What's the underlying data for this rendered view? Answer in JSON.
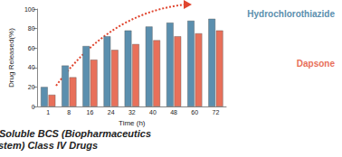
{
  "chart_data": {
    "type": "bar",
    "title": "Sustained Release of Poorly Soluble BCS (Biopharmaceutics Classification System) Class IV Drugs",
    "x_label": "Time (h)",
    "y_label": "Drug Released(%)",
    "categories": [
      "1",
      "8",
      "16",
      "24",
      "32",
      "40",
      "48",
      "60",
      "72"
    ],
    "series": [
      {
        "name": "Hydrochlorothiazide",
        "color": "#5b8fae",
        "values": [
          20,
          42,
          62,
          72,
          78,
          82,
          86,
          88,
          90
        ]
      },
      {
        "name": "Dapsone",
        "color": "#e8705a",
        "values": [
          12,
          30,
          48,
          58,
          64,
          68,
          72,
          75,
          78
        ]
      }
    ],
    "ylim": [
      0,
      100
    ],
    "yticks": [
      0,
      20,
      40,
      60,
      80,
      100
    ],
    "grid": false
  }
}
